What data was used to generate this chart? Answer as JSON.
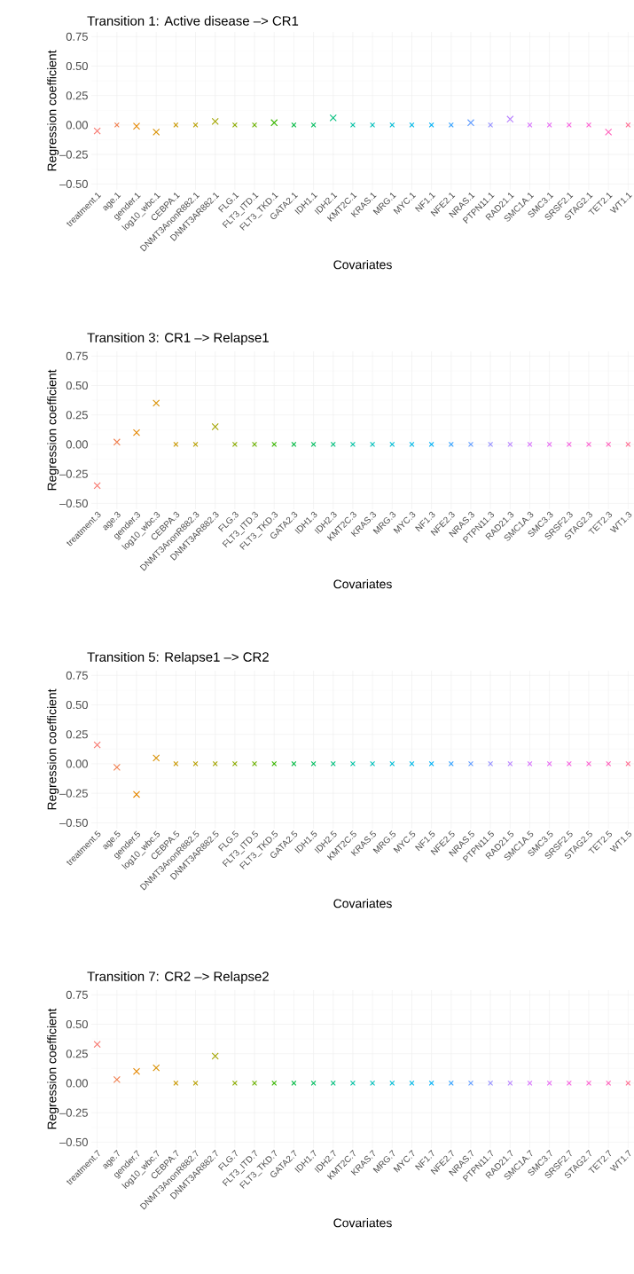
{
  "chart_data": [
    {
      "type": "scatter",
      "title": "Transition 1: Active disease –> CR1",
      "xlabel": "Covariates",
      "ylabel": "Regression coefficient",
      "categories": [
        "treatment.1",
        "age.1",
        "gender.1",
        "log10_wbc.1",
        "CEBPA.1",
        "DNMT3AnonR882.1",
        "DNMT3AR882.1",
        "FLG.1",
        "FLT3_ITD.1",
        "FLT3_TKD.1",
        "GATA2.1",
        "IDH1.1",
        "IDH2.1",
        "KMT2C.1",
        "KRAS.1",
        "MRG.1",
        "MYC.1",
        "NF1.1",
        "NFE2.1",
        "NRAS.1",
        "PTPN11.1",
        "RAD21.1",
        "SMC1A.1",
        "SMC3.1",
        "SRSF2.1",
        "STAG2.1",
        "TET2.1",
        "WT1.1"
      ],
      "values": [
        -0.05,
        0.0,
        -0.01,
        -0.06,
        0,
        0,
        0.03,
        0,
        0,
        0.02,
        0,
        0,
        0.06,
        0,
        0,
        0,
        0,
        0,
        0,
        0.02,
        0,
        0.05,
        0.0,
        0,
        0,
        0,
        -0.06,
        0
      ],
      "colors": [
        "#F8766D",
        "#F07F4F",
        "#E58700",
        "#D89000",
        "#C99800",
        "#B79F00",
        "#A3A500",
        "#8BAB00",
        "#6BB100",
        "#39B600",
        "#00BA42",
        "#00BD5F",
        "#00BF7D",
        "#00C1A3",
        "#00BFBB",
        "#00BCD5",
        "#00B8E7",
        "#00B0F6",
        "#35A2FF",
        "#619CFF",
        "#9590FF",
        "#B983FF",
        "#D874FD",
        "#E76BF3",
        "#F763E0",
        "#FD61D1",
        "#FF62BC",
        "#FF6C91"
      ],
      "ylim": [
        -0.55,
        0.79
      ],
      "yticks": [
        {
          "value": -0.5,
          "label": "–0.50"
        },
        {
          "value": -0.25,
          "label": "–0.25"
        },
        {
          "value": 0,
          "label": "0.00"
        },
        {
          "value": 0.25,
          "label": "0.25"
        },
        {
          "value": 0.5,
          "label": "0.50"
        },
        {
          "value": 0.75,
          "label": "0.75"
        }
      ],
      "grid": true,
      "marker": "cross"
    },
    {
      "type": "scatter",
      "title": "Transition 3: CR1 –> Relapse1",
      "xlabel": "Covariates",
      "ylabel": "Regression coefficient",
      "categories": [
        "treatment.3",
        "age.3",
        "gender.3",
        "log10_wbc.3",
        "CEBPA.3",
        "DNMT3AnonR882.3",
        "DNMT3AR882.3",
        "FLG.3",
        "FLT3_ITD.3",
        "FLT3_TKD.3",
        "GATA2.3",
        "IDH1.3",
        "IDH2.3",
        "KMT2C.3",
        "KRAS.3",
        "MRG.3",
        "MYC.3",
        "NF1.3",
        "NFE2.3",
        "NRAS.3",
        "PTPN11.3",
        "RAD21.3",
        "SMC1A.3",
        "SMC3.3",
        "SRSF2.3",
        "STAG2.3",
        "TET2.3",
        "WT1.3"
      ],
      "values": [
        -0.35,
        0.02,
        0.1,
        0.35,
        0,
        0,
        0.15,
        0,
        0,
        0,
        0,
        0,
        0,
        0,
        0,
        0,
        0,
        0,
        0,
        0,
        0,
        0,
        0,
        0,
        0,
        0,
        0,
        0
      ],
      "colors": [
        "#F8766D",
        "#F07F4F",
        "#E58700",
        "#D89000",
        "#C99800",
        "#B79F00",
        "#A3A500",
        "#8BAB00",
        "#6BB100",
        "#39B600",
        "#00BA42",
        "#00BD5F",
        "#00BF7D",
        "#00C1A3",
        "#00BFBB",
        "#00BCD5",
        "#00B8E7",
        "#00B0F6",
        "#35A2FF",
        "#619CFF",
        "#9590FF",
        "#B983FF",
        "#D874FD",
        "#E76BF3",
        "#F763E0",
        "#FD61D1",
        "#FF62BC",
        "#FF6C91"
      ],
      "ylim": [
        -0.55,
        0.79
      ],
      "yticks": [
        {
          "value": -0.5,
          "label": "–0.50"
        },
        {
          "value": -0.25,
          "label": "–0.25"
        },
        {
          "value": 0,
          "label": "0.00"
        },
        {
          "value": 0.25,
          "label": "0.25"
        },
        {
          "value": 0.5,
          "label": "0.50"
        },
        {
          "value": 0.75,
          "label": "0.75"
        }
      ],
      "grid": true,
      "marker": "cross"
    },
    {
      "type": "scatter",
      "title": "Transition 5: Relapse1 –> CR2",
      "xlabel": "Covariates",
      "ylabel": "Regression coefficient",
      "categories": [
        "treatment.5",
        "age.5",
        "gender.5",
        "log10_wbc.5",
        "CEBPA.5",
        "DNMT3AnonR882.5",
        "DNMT3AR882.5",
        "FLG.5",
        "FLT3_ITD.5",
        "FLT3_TKD.5",
        "GATA2.5",
        "IDH1.5",
        "IDH2.5",
        "KMT2C.5",
        "KRAS.5",
        "MRG.5",
        "MYC.5",
        "NF1.5",
        "NFE2.5",
        "NRAS.5",
        "PTPN11.5",
        "RAD21.5",
        "SMC1A.5",
        "SMC3.5",
        "SRSF2.5",
        "STAG2.5",
        "TET2.5",
        "WT1.5"
      ],
      "values": [
        0.16,
        -0.03,
        -0.26,
        0.05,
        0,
        0,
        0,
        0,
        0,
        0,
        0,
        0,
        0,
        0,
        0,
        0,
        0,
        0,
        0,
        0,
        0,
        0,
        0,
        0,
        0,
        0,
        0,
        0
      ],
      "colors": [
        "#F8766D",
        "#F07F4F",
        "#E58700",
        "#D89000",
        "#C99800",
        "#B79F00",
        "#A3A500",
        "#8BAB00",
        "#6BB100",
        "#39B600",
        "#00BA42",
        "#00BD5F",
        "#00BF7D",
        "#00C1A3",
        "#00BFBB",
        "#00BCD5",
        "#00B8E7",
        "#00B0F6",
        "#35A2FF",
        "#619CFF",
        "#9590FF",
        "#B983FF",
        "#D874FD",
        "#E76BF3",
        "#F763E0",
        "#FD61D1",
        "#FF62BC",
        "#FF6C91"
      ],
      "ylim": [
        -0.55,
        0.79
      ],
      "yticks": [
        {
          "value": -0.5,
          "label": "–0.50"
        },
        {
          "value": -0.25,
          "label": "–0.25"
        },
        {
          "value": 0,
          "label": "0.00"
        },
        {
          "value": 0.25,
          "label": "0.25"
        },
        {
          "value": 0.5,
          "label": "0.50"
        },
        {
          "value": 0.75,
          "label": "0.75"
        }
      ],
      "grid": true,
      "marker": "cross"
    },
    {
      "type": "scatter",
      "title": "Transition 7: CR2 –> Relapse2",
      "xlabel": "Covariates",
      "ylabel": "Regression coefficient",
      "categories": [
        "treatment.7",
        "age.7",
        "gender.7",
        "log10_wbc.7",
        "CEBPA.7",
        "DNMT3AnonR882.7",
        "DNMT3AR882.7",
        "FLG.7",
        "FLT3_ITD.7",
        "FLT3_TKD.7",
        "GATA2.7",
        "IDH1.7",
        "IDH2.7",
        "KMT2C.7",
        "KRAS.7",
        "MRG.7",
        "MYC.7",
        "NF1.7",
        "NFE2.7",
        "NRAS.7",
        "PTPN11.7",
        "RAD21.7",
        "SMC1A.7",
        "SMC3.7",
        "SRSF2.7",
        "STAG2.7",
        "TET2.7",
        "WT1.7"
      ],
      "values": [
        0.33,
        0.03,
        0.1,
        0.13,
        0,
        0,
        0.23,
        0,
        0,
        0,
        0,
        0,
        0,
        0,
        0,
        0,
        0,
        0,
        0,
        0,
        0,
        0,
        0,
        0,
        0,
        0,
        0,
        0
      ],
      "colors": [
        "#F8766D",
        "#F07F4F",
        "#E58700",
        "#D89000",
        "#C99800",
        "#B79F00",
        "#A3A500",
        "#8BAB00",
        "#6BB100",
        "#39B600",
        "#00BA42",
        "#00BD5F",
        "#00BF7D",
        "#00C1A3",
        "#00BFBB",
        "#00BCD5",
        "#00B8E7",
        "#00B0F6",
        "#35A2FF",
        "#619CFF",
        "#9590FF",
        "#B983FF",
        "#D874FD",
        "#E76BF3",
        "#F763E0",
        "#FD61D1",
        "#FF62BC",
        "#FF6C91"
      ],
      "ylim": [
        -0.55,
        0.79
      ],
      "yticks": [
        {
          "value": -0.5,
          "label": "–0.50"
        },
        {
          "value": -0.25,
          "label": "–0.25"
        },
        {
          "value": 0,
          "label": "0.00"
        },
        {
          "value": 0.25,
          "label": "0.25"
        },
        {
          "value": 0.5,
          "label": "0.50"
        },
        {
          "value": 0.75,
          "label": "0.75"
        }
      ],
      "grid": true,
      "marker": "cross"
    }
  ]
}
